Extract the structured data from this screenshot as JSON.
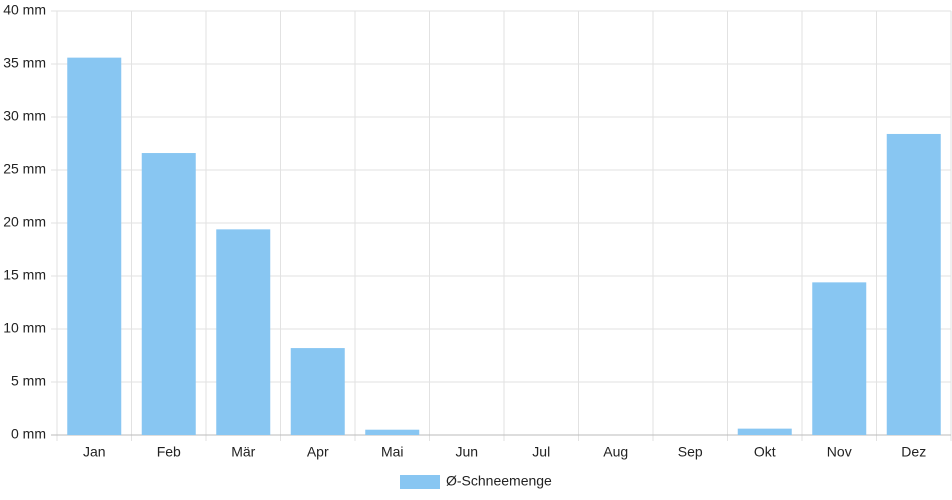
{
  "chart_data": {
    "type": "bar",
    "categories": [
      "Jan",
      "Feb",
      "Mär",
      "Apr",
      "Mai",
      "Jun",
      "Jul",
      "Aug",
      "Sep",
      "Okt",
      "Nov",
      "Dez"
    ],
    "series": [
      {
        "name": "Ø-Schneemenge",
        "color": "#88c6f2",
        "values": [
          35.6,
          26.6,
          19.4,
          8.2,
          0.5,
          0,
          0,
          0,
          0,
          0.6,
          14.4,
          28.4
        ]
      }
    ],
    "ylim": [
      0,
      40
    ],
    "yticks": [
      {
        "value": 0,
        "label": "0 mm"
      },
      {
        "value": 5,
        "label": "5 mm"
      },
      {
        "value": 10,
        "label": "10 mm"
      },
      {
        "value": 15,
        "label": "15 mm"
      },
      {
        "value": 20,
        "label": "20 mm"
      },
      {
        "value": 25,
        "label": "25 mm"
      },
      {
        "value": 30,
        "label": "30 mm"
      },
      {
        "value": 35,
        "label": "35 mm"
      },
      {
        "value": 40,
        "label": "40 mm"
      }
    ],
    "grid": true,
    "legend": "bottom"
  }
}
